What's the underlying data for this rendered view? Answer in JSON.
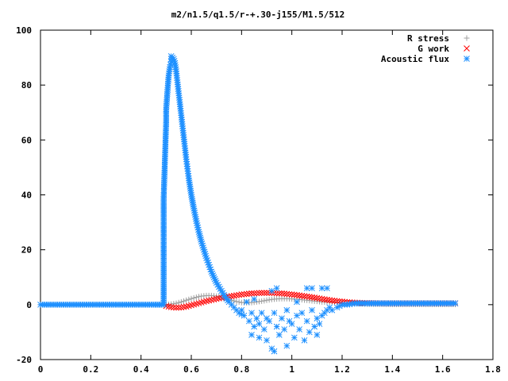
{
  "chart_data": {
    "type": "scatter",
    "title": "m2/n1.5/q1.5/r-+.30-j155/M1.5/512",
    "xlabel": "",
    "ylabel": "",
    "xlim": [
      0,
      1.8
    ],
    "ylim": [
      -20,
      100
    ],
    "x_ticks": [
      0,
      0.2,
      0.4,
      0.6,
      0.8,
      1,
      1.2,
      1.4,
      1.6,
      1.8
    ],
    "y_ticks": [
      -20,
      0,
      20,
      40,
      60,
      80,
      100
    ],
    "x_tick_labels": [
      "0",
      "0.2",
      "0.4",
      "0.6",
      "0.8",
      "1",
      "1.2",
      "1.4",
      "1.6",
      "1.8"
    ],
    "y_tick_labels": [
      "-20",
      "0",
      "20",
      "40",
      "60",
      "80",
      "100"
    ],
    "grid": false,
    "legend_position": "top-right",
    "series": [
      {
        "name": "R stress",
        "marker": "plus",
        "color": "#a0a0a0",
        "points": [
          [
            0.0,
            0
          ],
          [
            0.05,
            0
          ],
          [
            0.1,
            0
          ],
          [
            0.15,
            0
          ],
          [
            0.2,
            0
          ],
          [
            0.25,
            0
          ],
          [
            0.3,
            0
          ],
          [
            0.35,
            0
          ],
          [
            0.4,
            0
          ],
          [
            0.45,
            0
          ],
          [
            0.5,
            0
          ],
          [
            0.52,
            0.2
          ],
          [
            0.54,
            0.5
          ],
          [
            0.56,
            1.0
          ],
          [
            0.58,
            1.6
          ],
          [
            0.6,
            2.2
          ],
          [
            0.62,
            2.7
          ],
          [
            0.64,
            3.1
          ],
          [
            0.66,
            3.3
          ],
          [
            0.68,
            3.3
          ],
          [
            0.7,
            3.1
          ],
          [
            0.72,
            2.7
          ],
          [
            0.74,
            2.2
          ],
          [
            0.76,
            1.6
          ],
          [
            0.78,
            1.1
          ],
          [
            0.8,
            0.8
          ],
          [
            0.82,
            0.7
          ],
          [
            0.84,
            0.8
          ],
          [
            0.86,
            1.0
          ],
          [
            0.88,
            1.3
          ],
          [
            0.9,
            1.6
          ],
          [
            0.92,
            1.9
          ],
          [
            0.94,
            2.1
          ],
          [
            0.96,
            2.2
          ],
          [
            0.98,
            2.2
          ],
          [
            1.0,
            2.1
          ],
          [
            1.02,
            2.0
          ],
          [
            1.04,
            1.8
          ],
          [
            1.06,
            1.6
          ],
          [
            1.08,
            1.4
          ],
          [
            1.1,
            1.2
          ],
          [
            1.12,
            1.0
          ],
          [
            1.14,
            0.9
          ],
          [
            1.16,
            0.8
          ],
          [
            1.18,
            0.7
          ],
          [
            1.2,
            0.6
          ],
          [
            1.22,
            0.5
          ],
          [
            1.24,
            0.4
          ],
          [
            1.26,
            0.3
          ],
          [
            1.28,
            0.3
          ],
          [
            1.3,
            0.2
          ],
          [
            1.35,
            0.2
          ],
          [
            1.4,
            0.1
          ],
          [
            1.45,
            0.1
          ],
          [
            1.5,
            0.1
          ],
          [
            1.55,
            0.1
          ],
          [
            1.6,
            0.1
          ],
          [
            1.65,
            0.1
          ]
        ]
      },
      {
        "name": "G work",
        "marker": "cross",
        "color": "#ff0000",
        "points": [
          [
            0.5,
            -0.5
          ],
          [
            0.52,
            -0.9
          ],
          [
            0.54,
            -1.1
          ],
          [
            0.56,
            -1.0
          ],
          [
            0.58,
            -0.7
          ],
          [
            0.6,
            -0.2
          ],
          [
            0.62,
            0.3
          ],
          [
            0.64,
            0.8
          ],
          [
            0.66,
            1.3
          ],
          [
            0.68,
            1.7
          ],
          [
            0.7,
            2.1
          ],
          [
            0.72,
            2.5
          ],
          [
            0.74,
            2.8
          ],
          [
            0.76,
            3.1
          ],
          [
            0.78,
            3.4
          ],
          [
            0.8,
            3.7
          ],
          [
            0.82,
            3.9
          ],
          [
            0.84,
            4.1
          ],
          [
            0.86,
            4.2
          ],
          [
            0.88,
            4.3
          ],
          [
            0.9,
            4.3
          ],
          [
            0.92,
            4.3
          ],
          [
            0.94,
            4.2
          ],
          [
            0.96,
            4.1
          ],
          [
            0.98,
            3.9
          ],
          [
            1.0,
            3.7
          ],
          [
            1.02,
            3.5
          ],
          [
            1.04,
            3.2
          ],
          [
            1.06,
            3.0
          ],
          [
            1.08,
            2.7
          ],
          [
            1.1,
            2.4
          ],
          [
            1.12,
            2.1
          ],
          [
            1.14,
            1.8
          ],
          [
            1.16,
            1.5
          ],
          [
            1.18,
            1.3
          ],
          [
            1.2,
            1.1
          ],
          [
            1.22,
            0.9
          ],
          [
            1.24,
            0.8
          ],
          [
            1.26,
            0.7
          ],
          [
            1.28,
            0.6
          ],
          [
            1.3,
            0.6
          ],
          [
            1.35,
            0.5
          ],
          [
            1.4,
            0.5
          ],
          [
            1.45,
            0.5
          ],
          [
            1.5,
            0.5
          ],
          [
            1.55,
            0.5
          ],
          [
            1.6,
            0.5
          ],
          [
            1.65,
            0.5
          ]
        ]
      },
      {
        "name": "Acoustic flux",
        "marker": "star",
        "color": "#1e90ff",
        "points": [
          [
            0.0,
            0
          ],
          [
            0.05,
            0
          ],
          [
            0.1,
            0
          ],
          [
            0.15,
            0
          ],
          [
            0.2,
            0
          ],
          [
            0.25,
            0
          ],
          [
            0.3,
            0
          ],
          [
            0.35,
            0
          ],
          [
            0.4,
            0
          ],
          [
            0.45,
            0
          ],
          [
            0.49,
            0
          ],
          [
            0.49,
            38.5
          ],
          [
            0.5,
            66.5
          ],
          [
            0.5,
            71
          ],
          [
            0.505,
            77.5
          ],
          [
            0.51,
            83.5
          ],
          [
            0.515,
            86.5
          ],
          [
            0.52,
            88.5
          ],
          [
            0.52,
            90.5
          ],
          [
            0.525,
            90
          ],
          [
            0.53,
            89.5
          ],
          [
            0.535,
            88
          ],
          [
            0.54,
            85
          ],
          [
            0.545,
            81
          ],
          [
            0.55,
            77
          ],
          [
            0.555,
            73
          ],
          [
            0.56,
            69
          ],
          [
            0.565,
            65
          ],
          [
            0.57,
            61
          ],
          [
            0.575,
            57
          ],
          [
            0.58,
            53
          ],
          [
            0.585,
            49.5
          ],
          [
            0.59,
            46
          ],
          [
            0.595,
            43
          ],
          [
            0.6,
            40
          ],
          [
            0.61,
            35
          ],
          [
            0.62,
            30.5
          ],
          [
            0.63,
            26.5
          ],
          [
            0.64,
            23
          ],
          [
            0.65,
            20
          ],
          [
            0.66,
            17
          ],
          [
            0.67,
            14.5
          ],
          [
            0.68,
            12
          ],
          [
            0.69,
            10
          ],
          [
            0.7,
            8
          ],
          [
            0.71,
            6.5
          ],
          [
            0.72,
            5
          ],
          [
            0.73,
            3.5
          ],
          [
            0.74,
            2.2
          ],
          [
            0.75,
            1
          ],
          [
            0.76,
            0
          ],
          [
            0.77,
            -1
          ],
          [
            0.78,
            -2
          ],
          [
            0.79,
            -3
          ],
          [
            0.8,
            -3.5
          ],
          [
            0.8,
            -2
          ],
          [
            0.81,
            -4
          ],
          [
            0.82,
            1
          ],
          [
            0.83,
            -6
          ],
          [
            0.84,
            -3
          ],
          [
            0.84,
            -11
          ],
          [
            0.85,
            -8
          ],
          [
            0.85,
            2
          ],
          [
            0.86,
            -5
          ],
          [
            0.87,
            -7
          ],
          [
            0.87,
            -12
          ],
          [
            0.88,
            -3
          ],
          [
            0.89,
            -9
          ],
          [
            0.9,
            -5
          ],
          [
            0.9,
            -13
          ],
          [
            0.91,
            -6
          ],
          [
            0.92,
            -16
          ],
          [
            0.92,
            5
          ],
          [
            0.93,
            -17
          ],
          [
            0.93,
            -3
          ],
          [
            0.94,
            -8
          ],
          [
            0.94,
            6
          ],
          [
            0.95,
            -11
          ],
          [
            0.96,
            -5
          ],
          [
            0.97,
            -9
          ],
          [
            0.98,
            -2
          ],
          [
            0.98,
            -15
          ],
          [
            0.99,
            -6
          ],
          [
            1.0,
            -7
          ],
          [
            1.01,
            -12
          ],
          [
            1.02,
            -4
          ],
          [
            1.02,
            1
          ],
          [
            1.03,
            -9
          ],
          [
            1.04,
            -3
          ],
          [
            1.05,
            -13
          ],
          [
            1.06,
            -6
          ],
          [
            1.06,
            6
          ],
          [
            1.07,
            -10
          ],
          [
            1.08,
            -2
          ],
          [
            1.08,
            6
          ],
          [
            1.09,
            -8
          ],
          [
            1.1,
            -5
          ],
          [
            1.1,
            -11
          ],
          [
            1.11,
            -7
          ],
          [
            1.12,
            -4
          ],
          [
            1.12,
            6
          ],
          [
            1.13,
            -3
          ],
          [
            1.14,
            -2
          ],
          [
            1.14,
            6
          ],
          [
            1.15,
            -1
          ],
          [
            1.16,
            -2
          ],
          [
            1.18,
            -1
          ],
          [
            1.2,
            0
          ],
          [
            1.22,
            0
          ],
          [
            1.25,
            0.5
          ],
          [
            1.3,
            0.5
          ],
          [
            1.35,
            0.5
          ],
          [
            1.4,
            0.5
          ],
          [
            1.45,
            0.5
          ],
          [
            1.5,
            0.5
          ],
          [
            1.55,
            0.5
          ],
          [
            1.6,
            0.5
          ],
          [
            1.65,
            0.5
          ]
        ]
      }
    ]
  }
}
